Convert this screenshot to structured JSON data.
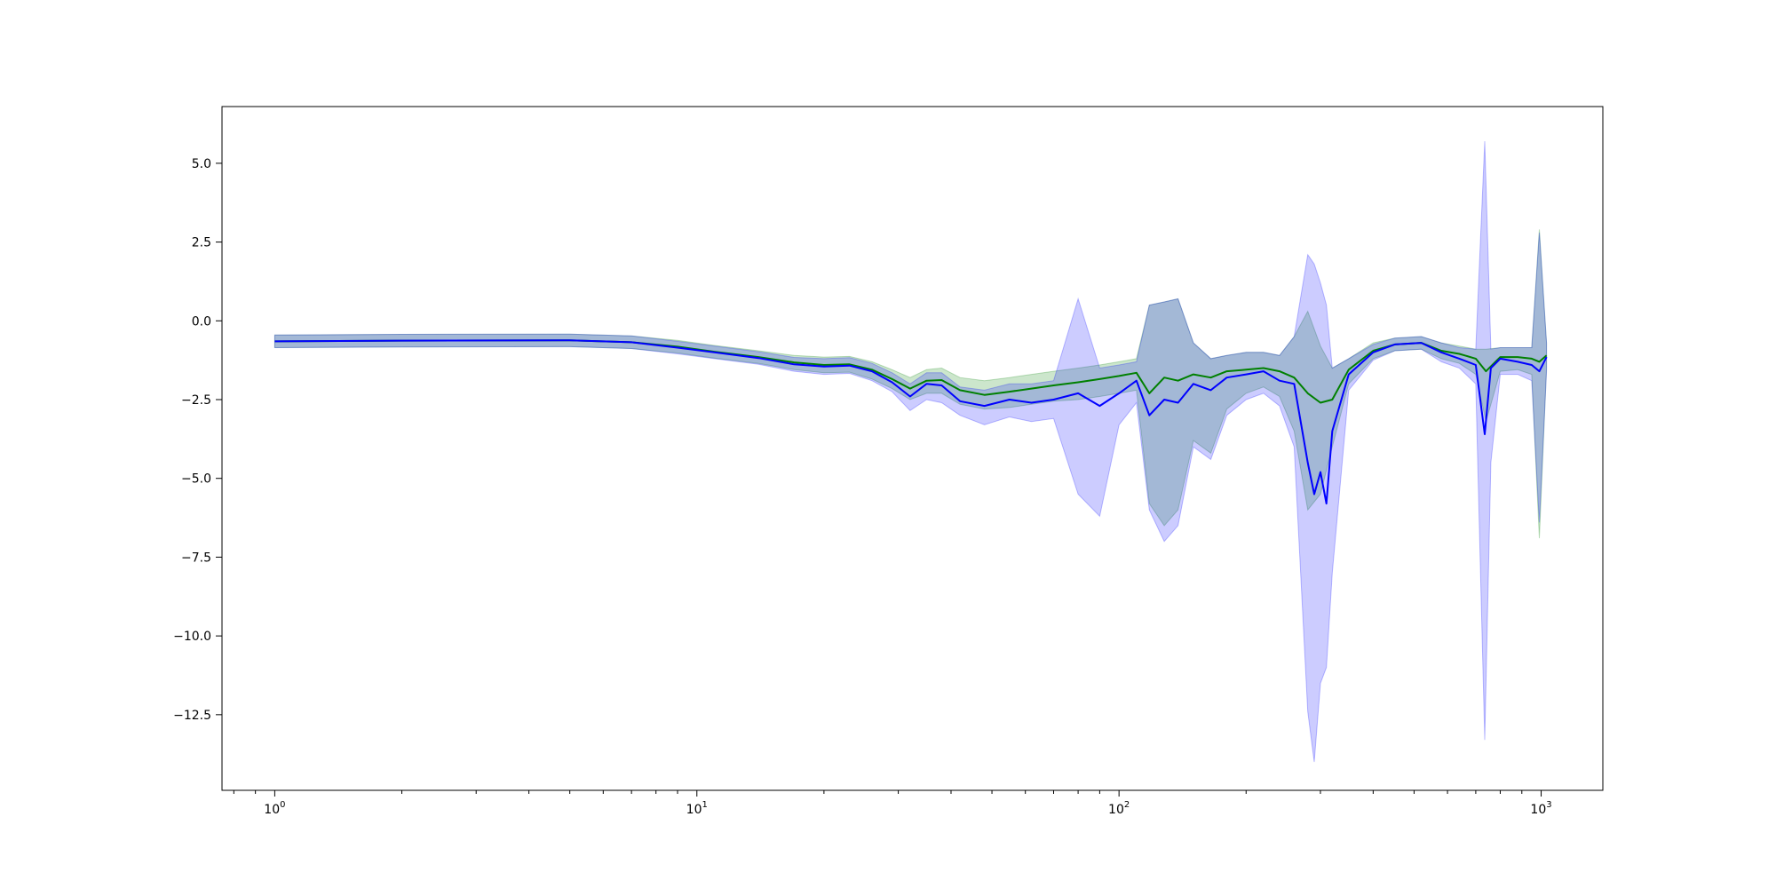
{
  "chart_data": {
    "type": "line",
    "title": "",
    "xlabel": "",
    "ylabel": "",
    "xscale": "log",
    "xlim": [
      0.75,
      1400
    ],
    "ylim": [
      -14.9,
      6.8
    ],
    "grid": false,
    "x_ticks": [
      {
        "value": 1,
        "base": "10",
        "exp": "0"
      },
      {
        "value": 10,
        "base": "10",
        "exp": "1"
      },
      {
        "value": 100,
        "base": "10",
        "exp": "2"
      },
      {
        "value": 1000,
        "base": "10",
        "exp": "3"
      }
    ],
    "y_ticks": [
      {
        "value": 5.0,
        "label": "5.0"
      },
      {
        "value": 2.5,
        "label": "2.5"
      },
      {
        "value": 0.0,
        "label": "0.0"
      },
      {
        "value": -2.5,
        "label": "−2.5"
      },
      {
        "value": -5.0,
        "label": "−5.0"
      },
      {
        "value": -7.5,
        "label": "−7.5"
      },
      {
        "value": -10.0,
        "label": "−10.0"
      },
      {
        "value": -12.5,
        "label": "−12.5"
      }
    ],
    "series": [
      {
        "color": "#008000",
        "band_color": "#008000",
        "band_opacity": 0.2,
        "points": [
          [
            1,
            -0.65,
            -0.45,
            -0.85
          ],
          [
            2,
            -0.63,
            -0.43,
            -0.83
          ],
          [
            5,
            -0.62,
            -0.42,
            -0.82
          ],
          [
            7,
            -0.68,
            -0.48,
            -0.88
          ],
          [
            9,
            -0.82,
            -0.62,
            -1.02
          ],
          [
            11,
            -0.98,
            -0.78,
            -1.18
          ],
          [
            14,
            -1.15,
            -0.95,
            -1.35
          ],
          [
            17,
            -1.32,
            -1.1,
            -1.55
          ],
          [
            20,
            -1.4,
            -1.15,
            -1.65
          ],
          [
            23,
            -1.38,
            -1.13,
            -1.63
          ],
          [
            26,
            -1.55,
            -1.3,
            -1.85
          ],
          [
            29,
            -1.85,
            -1.55,
            -2.15
          ],
          [
            32,
            -2.15,
            -1.8,
            -2.5
          ],
          [
            35,
            -1.9,
            -1.55,
            -2.3
          ],
          [
            38,
            -1.88,
            -1.5,
            -2.3
          ],
          [
            42,
            -2.2,
            -1.8,
            -2.65
          ],
          [
            48,
            -2.35,
            -1.9,
            -2.8
          ],
          [
            55,
            -2.25,
            -1.8,
            -2.75
          ],
          [
            62,
            -2.15,
            -1.7,
            -2.65
          ],
          [
            70,
            -2.05,
            -1.6,
            -2.55
          ],
          [
            80,
            -1.95,
            -1.5,
            -2.5
          ],
          [
            90,
            -1.85,
            -1.4,
            -2.4
          ],
          [
            100,
            -1.75,
            -1.3,
            -2.3
          ],
          [
            110,
            -1.65,
            -1.2,
            -2.2
          ],
          [
            118,
            -2.3,
            0.5,
            -5.8
          ],
          [
            128,
            -1.8,
            0.6,
            -6.5
          ],
          [
            138,
            -1.9,
            0.7,
            -6.0
          ],
          [
            150,
            -1.7,
            -0.7,
            -3.8
          ],
          [
            165,
            -1.8,
            -1.2,
            -4.2
          ],
          [
            180,
            -1.6,
            -1.1,
            -2.8
          ],
          [
            200,
            -1.55,
            -1.0,
            -2.3
          ],
          [
            220,
            -1.5,
            -1.0,
            -2.1
          ],
          [
            240,
            -1.6,
            -1.1,
            -2.4
          ],
          [
            260,
            -1.8,
            -0.5,
            -3.5
          ],
          [
            280,
            -2.3,
            0.3,
            -6.0
          ],
          [
            300,
            -2.6,
            -0.8,
            -5.5
          ],
          [
            320,
            -2.5,
            -1.5,
            -4.0
          ],
          [
            350,
            -1.55,
            -1.2,
            -2.0
          ],
          [
            400,
            -0.95,
            -0.7,
            -1.2
          ],
          [
            450,
            -0.75,
            -0.55,
            -0.95
          ],
          [
            520,
            -0.7,
            -0.5,
            -0.9
          ],
          [
            580,
            -0.95,
            -0.7,
            -1.2
          ],
          [
            640,
            -1.05,
            -0.8,
            -1.35
          ],
          [
            700,
            -1.2,
            -0.9,
            -1.7
          ],
          [
            740,
            -1.6,
            -0.9,
            -3.2
          ],
          [
            800,
            -1.15,
            -0.85,
            -1.6
          ],
          [
            880,
            -1.15,
            -0.85,
            -1.55
          ],
          [
            950,
            -1.2,
            -0.85,
            -1.7
          ],
          [
            990,
            -1.3,
            2.9,
            -6.9
          ],
          [
            1030,
            -1.1,
            -0.7,
            -1.5
          ]
        ]
      },
      {
        "color": "#0000ff",
        "band_color": "#0000ff",
        "band_opacity": 0.2,
        "points": [
          [
            1,
            -0.65,
            -0.45,
            -0.85
          ],
          [
            2,
            -0.63,
            -0.43,
            -0.83
          ],
          [
            5,
            -0.62,
            -0.42,
            -0.82
          ],
          [
            7,
            -0.68,
            -0.48,
            -0.88
          ],
          [
            9,
            -0.85,
            -0.65,
            -1.05
          ],
          [
            11,
            -1.0,
            -0.8,
            -1.2
          ],
          [
            14,
            -1.18,
            -0.98,
            -1.38
          ],
          [
            17,
            -1.38,
            -1.16,
            -1.6
          ],
          [
            20,
            -1.45,
            -1.2,
            -1.7
          ],
          [
            23,
            -1.42,
            -1.17,
            -1.67
          ],
          [
            26,
            -1.6,
            -1.35,
            -1.9
          ],
          [
            29,
            -1.95,
            -1.65,
            -2.25
          ],
          [
            32,
            -2.4,
            -2.0,
            -2.85
          ],
          [
            35,
            -2.0,
            -1.65,
            -2.5
          ],
          [
            38,
            -2.05,
            -1.65,
            -2.6
          ],
          [
            42,
            -2.55,
            -2.1,
            -3.0
          ],
          [
            48,
            -2.7,
            -2.2,
            -3.3
          ],
          [
            55,
            -2.5,
            -2.0,
            -3.05
          ],
          [
            62,
            -2.6,
            -2.0,
            -3.2
          ],
          [
            70,
            -2.5,
            -1.9,
            -3.1
          ],
          [
            80,
            -2.3,
            0.7,
            -5.5
          ],
          [
            90,
            -2.7,
            -1.5,
            -6.2
          ],
          [
            100,
            -2.3,
            -1.4,
            -3.3
          ],
          [
            110,
            -1.9,
            -1.3,
            -2.6
          ],
          [
            118,
            -3.0,
            0.5,
            -6.0
          ],
          [
            128,
            -2.5,
            0.6,
            -7.0
          ],
          [
            138,
            -2.6,
            0.7,
            -6.5
          ],
          [
            150,
            -2.0,
            -0.7,
            -4.0
          ],
          [
            165,
            -2.2,
            -1.2,
            -4.4
          ],
          [
            180,
            -1.8,
            -1.1,
            -3.0
          ],
          [
            200,
            -1.7,
            -1.0,
            -2.5
          ],
          [
            220,
            -1.6,
            -1.0,
            -2.3
          ],
          [
            240,
            -1.9,
            -1.1,
            -2.7
          ],
          [
            260,
            -2.0,
            -0.5,
            -4.0
          ],
          [
            280,
            -4.5,
            2.1,
            -12.4
          ],
          [
            290,
            -5.5,
            1.8,
            -14.0
          ],
          [
            300,
            -4.8,
            1.2,
            -11.5
          ],
          [
            310,
            -5.8,
            0.5,
            -11.0
          ],
          [
            320,
            -3.5,
            -1.5,
            -8.0
          ],
          [
            350,
            -1.7,
            -1.2,
            -2.2
          ],
          [
            400,
            -1.0,
            -0.75,
            -1.25
          ],
          [
            450,
            -0.75,
            -0.55,
            -0.95
          ],
          [
            520,
            -0.7,
            -0.5,
            -0.9
          ],
          [
            580,
            -1.0,
            -0.7,
            -1.3
          ],
          [
            640,
            -1.2,
            -0.85,
            -1.5
          ],
          [
            700,
            -1.4,
            -0.9,
            -2.0
          ],
          [
            735,
            -3.6,
            5.7,
            -13.3
          ],
          [
            760,
            -1.5,
            -0.9,
            -4.5
          ],
          [
            800,
            -1.2,
            -0.85,
            -1.7
          ],
          [
            880,
            -1.3,
            -0.85,
            -1.7
          ],
          [
            950,
            -1.4,
            -0.85,
            -1.9
          ],
          [
            990,
            -1.6,
            2.8,
            -6.4
          ],
          [
            1030,
            -1.15,
            -0.7,
            -1.6
          ]
        ]
      }
    ]
  }
}
